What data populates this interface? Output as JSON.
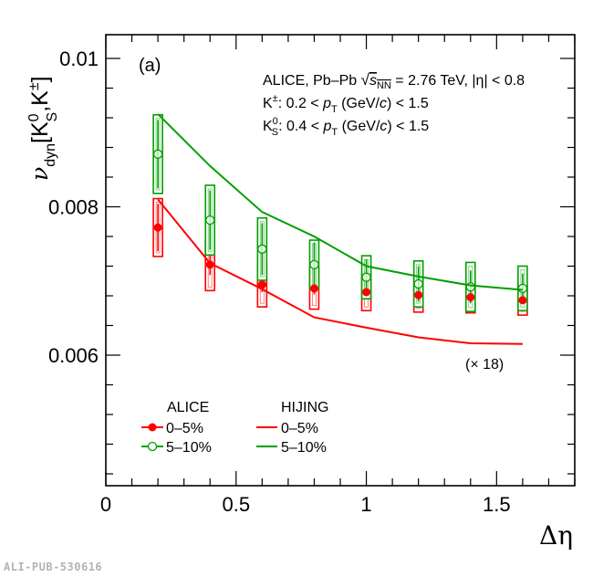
{
  "watermark": "ALI-PUB-530616",
  "chart_data": {
    "type": "scatter",
    "panel_label": "(a)",
    "xlabel": "Δη",
    "ylabel": {
      "main": "ν",
      "sub": "dyn",
      "bracket_open": "[K",
      "k0_sup": "0",
      "k0_sub": "S",
      "comma": ",K",
      "kpm_sup": "±",
      "bracket_close": "]"
    },
    "xlim": [
      0,
      1.8
    ],
    "ylim": [
      0.00424,
      0.01032
    ],
    "xticks": [
      0,
      0.5,
      1,
      1.5
    ],
    "xtick_labels": [
      "0",
      "0.5",
      "1",
      "1.5"
    ],
    "yticks": [
      0.006,
      0.008,
      0.01
    ],
    "ytick_labels": [
      "0.006",
      "0.008",
      "0.01"
    ],
    "grid": false,
    "annotations": {
      "line1_a": "ALICE, Pb–Pb ",
      "line1_s": "s",
      "line1_nn": "NN",
      "line1_b": " = 2.76 TeV, |η| < 0.8",
      "line2_k": "K",
      "line2_sup": "±",
      "line2_a": ": 0.2 < ",
      "line2_p": "p",
      "line2_t": "T",
      "line2_b": " (GeV/",
      "line2_c": "c",
      "line2_e": ") < 1.5",
      "line3_k": "K",
      "line3_sup": "0",
      "line3_sub": "S",
      "line3_a": ": 0.4 < ",
      "line3_p": "p",
      "line3_t": "T",
      "line3_b": " (GeV/",
      "line3_c": "c",
      "line3_e": ") < 1.5",
      "scale_note": "(× 18)"
    },
    "legend": {
      "placement": "bottom-left",
      "alice_header": "ALICE",
      "hijing_header": "HIJING",
      "entries": [
        "0–5%",
        "5–10%",
        "0–5%",
        "5–10%"
      ]
    },
    "colors": {
      "red": "#ff0000",
      "green": "#00a000"
    },
    "x": [
      0.2,
      0.4,
      0.6,
      0.8,
      1.0,
      1.2,
      1.4,
      1.6
    ],
    "series": [
      {
        "name": "ALICE 0–5%",
        "kind": "data",
        "color": "red",
        "marker": "filled-circle",
        "values": [
          0.00772,
          0.00722,
          0.00695,
          0.0069,
          0.00685,
          0.00681,
          0.00678,
          0.00674
        ],
        "stat_err": [
          0.00032,
          0.00014,
          0.0001,
          8e-05,
          6e-05,
          5e-05,
          5e-05,
          4e-05
        ],
        "sys_err": [
          0.00039,
          0.00035,
          0.0003,
          0.00028,
          0.00025,
          0.00023,
          0.00021,
          0.0002
        ]
      },
      {
        "name": "ALICE 5–10%",
        "kind": "data",
        "color": "green",
        "marker": "open-circle",
        "values": [
          0.00871,
          0.00782,
          0.00743,
          0.00722,
          0.00705,
          0.00696,
          0.00692,
          0.0069
        ],
        "stat_err": [
          0.00046,
          0.0004,
          0.00035,
          0.0003,
          0.00024,
          0.00024,
          0.00022,
          0.0002
        ],
        "sys_err": [
          0.00053,
          0.00047,
          0.00042,
          0.00033,
          0.00029,
          0.00031,
          0.00033,
          0.0003
        ]
      },
      {
        "name": "HIJING 0–5%",
        "kind": "line",
        "color": "red",
        "values": [
          0.0081,
          0.00724,
          0.00689,
          0.00651,
          0.00637,
          0.00624,
          0.00616,
          0.00615
        ]
      },
      {
        "name": "HIJING 5–10%",
        "kind": "line",
        "color": "green",
        "values": [
          0.00925,
          0.00855,
          0.00793,
          0.0076,
          0.0072,
          0.00706,
          0.00694,
          0.00688
        ]
      }
    ]
  }
}
